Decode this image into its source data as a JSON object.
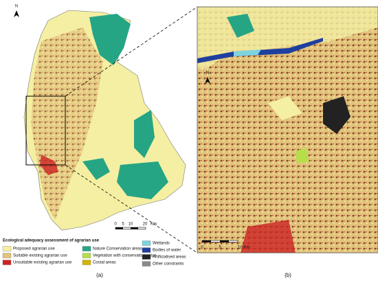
{
  "north_a": "N",
  "north_b": "N",
  "scale_a": [
    "0",
    "5",
    "10",
    "20",
    "Km"
  ],
  "scale_b": [
    "0",
    "5",
    "10 Km"
  ],
  "legend": {
    "title": "Ecological adequacy assessment of agrarian use",
    "items": [
      {
        "label": "Proposed agrarian use",
        "color": "#f4efa2"
      },
      {
        "label": "Suitable existing agrarian use",
        "color": "#e2c27c"
      },
      {
        "label": "Unsuitable existing agrarian use",
        "color": "#cc2222"
      },
      {
        "label": "Nature Conservation areas",
        "color": "#26a585"
      },
      {
        "label": "Vegetation with conservation value",
        "color": "#b6dd4a"
      },
      {
        "label": "Costal areas",
        "color": "#d2b400"
      },
      {
        "label": "Wetlands",
        "color": "#7dd3df"
      },
      {
        "label": "Bodies of water",
        "color": "#1f3f9f"
      },
      {
        "label": "Artificialised areas",
        "color": "#222222"
      },
      {
        "label": "Other constraints",
        "color": "#8a8a8a"
      }
    ]
  },
  "panel_a": "(a)",
  "panel_b": "(b)"
}
